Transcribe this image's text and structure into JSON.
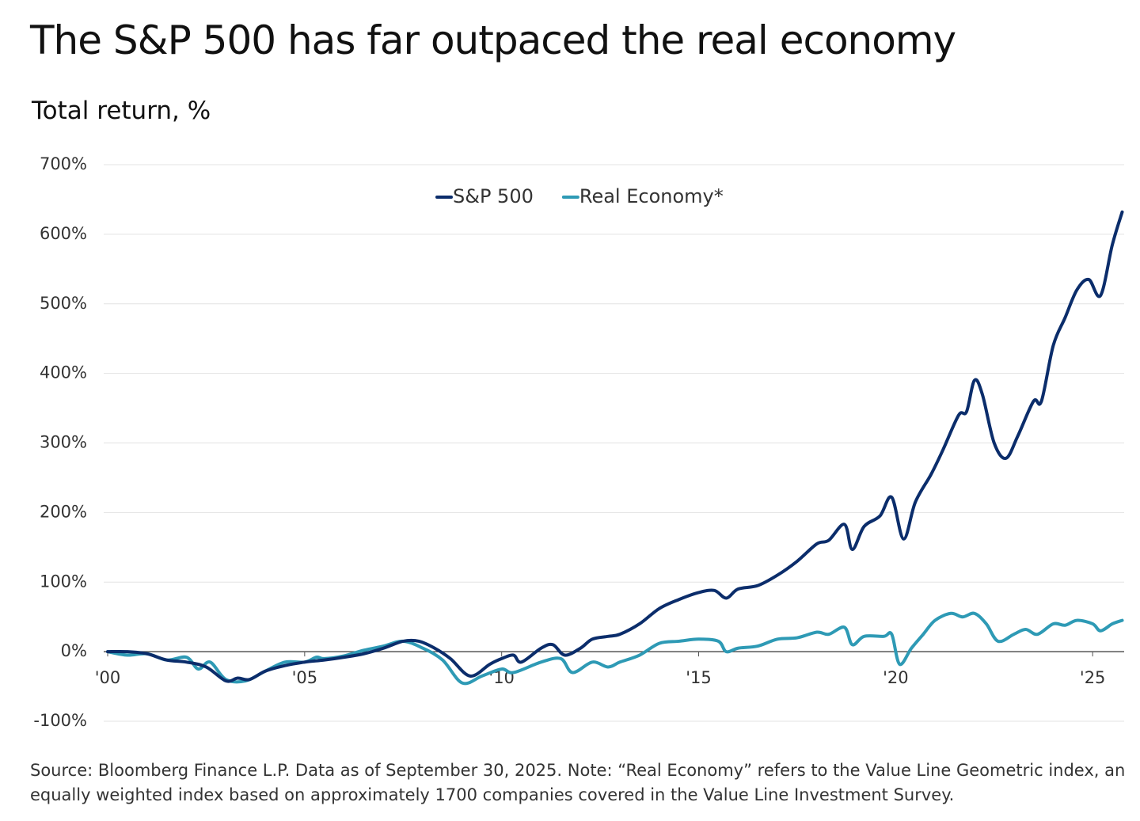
{
  "chart_data": {
    "type": "line",
    "title": "The S&P 500 has far outpaced the real economy",
    "subtitle": "Total return, %",
    "note": "Source: Bloomberg Finance L.P. Data as of September 30, 2025. Note: “Real Economy” refers to the Value Line Geometric index, an equally weighted index based on approximately 1700 companies covered in the Value Line Investment Survey.",
    "xlim": [
      2000,
      2025.8
    ],
    "xticks": [
      {
        "value": 2000,
        "label": "'00"
      },
      {
        "value": 2005,
        "label": "'05"
      },
      {
        "value": 2010,
        "label": "'10"
      },
      {
        "value": 2015,
        "label": "'15"
      },
      {
        "value": 2020,
        "label": "'20"
      },
      {
        "value": 2025,
        "label": "'25"
      }
    ],
    "ylim": [
      -100,
      700
    ],
    "yticks": [
      {
        "value": -100,
        "label": "-100%"
      },
      {
        "value": 0,
        "label": "0%"
      },
      {
        "value": 100,
        "label": "100%"
      },
      {
        "value": 200,
        "label": "200%"
      },
      {
        "value": 300,
        "label": "300%"
      },
      {
        "value": 400,
        "label": "400%"
      },
      {
        "value": 500,
        "label": "500%"
      },
      {
        "value": 600,
        "label": "600%"
      },
      {
        "value": 700,
        "label": "700%"
      }
    ],
    "grid": true,
    "legend": "top",
    "series": [
      {
        "name": "S&P 500",
        "color": "#0b2d6b",
        "x": [
          2000,
          2000.5,
          2001,
          2001.5,
          2002,
          2002.5,
          2003,
          2003.3,
          2003.6,
          2004,
          2004.5,
          2005,
          2005.5,
          2006,
          2006.5,
          2007,
          2007.5,
          2007.9,
          2008.3,
          2008.7,
          2009.2,
          2009.7,
          2010,
          2010.3,
          2010.5,
          2011,
          2011.3,
          2011.6,
          2012,
          2012.3,
          2012.7,
          2013,
          2013.5,
          2014,
          2014.5,
          2015,
          2015.4,
          2015.7,
          2016,
          2016.5,
          2017,
          2017.5,
          2018,
          2018.3,
          2018.7,
          2018.9,
          2019.2,
          2019.6,
          2019.9,
          2020.2,
          2020.5,
          2020.9,
          2021.2,
          2021.6,
          2021.8,
          2022,
          2022.2,
          2022.5,
          2022.8,
          2023.1,
          2023.5,
          2023.7,
          2024,
          2024.3,
          2024.6,
          2024.9,
          2025.2,
          2025.5,
          2025.75
        ],
        "values": [
          0,
          0,
          -3,
          -12,
          -15,
          -22,
          -42,
          -38,
          -40,
          -28,
          -20,
          -15,
          -12,
          -8,
          -3,
          5,
          15,
          15,
          5,
          -10,
          -35,
          -18,
          -10,
          -5,
          -15,
          5,
          10,
          -5,
          5,
          18,
          22,
          25,
          40,
          62,
          75,
          85,
          88,
          77,
          90,
          95,
          110,
          130,
          155,
          160,
          183,
          147,
          180,
          195,
          222,
          162,
          215,
          255,
          290,
          340,
          345,
          390,
          370,
          300,
          278,
          310,
          360,
          360,
          440,
          480,
          520,
          535,
          512,
          585,
          632
        ]
      },
      {
        "name": "Real Economy*",
        "color": "#2e9ab5",
        "x": [
          2000,
          2000.5,
          2001,
          2001.5,
          2002,
          2002.3,
          2002.6,
          2003,
          2003.5,
          2004,
          2004.5,
          2005,
          2005.3,
          2005.5,
          2006,
          2006.5,
          2007,
          2007.5,
          2008,
          2008.5,
          2009,
          2009.5,
          2010,
          2010.3,
          2011,
          2011.5,
          2011.8,
          2012.3,
          2012.7,
          2013,
          2013.5,
          2014,
          2014.5,
          2015,
          2015.5,
          2015.7,
          2016,
          2016.5,
          2017,
          2017.5,
          2018,
          2018.3,
          2018.7,
          2018.9,
          2019.2,
          2019.7,
          2019.9,
          2020.1,
          2020.4,
          2020.7,
          2021,
          2021.4,
          2021.7,
          2022,
          2022.3,
          2022.6,
          2023,
          2023.3,
          2023.6,
          2024,
          2024.3,
          2024.6,
          2025,
          2025.2,
          2025.5,
          2025.75
        ],
        "values": [
          0,
          -5,
          -3,
          -12,
          -8,
          -25,
          -15,
          -40,
          -42,
          -28,
          -15,
          -15,
          -8,
          -10,
          -6,
          2,
          8,
          15,
          5,
          -12,
          -45,
          -35,
          -25,
          -30,
          -15,
          -10,
          -30,
          -15,
          -22,
          -15,
          -5,
          12,
          15,
          18,
          15,
          0,
          5,
          8,
          18,
          20,
          28,
          25,
          35,
          10,
          22,
          22,
          25,
          -18,
          5,
          25,
          45,
          55,
          50,
          55,
          40,
          15,
          25,
          32,
          25,
          40,
          38,
          45,
          40,
          30,
          40,
          45
        ]
      }
    ]
  }
}
